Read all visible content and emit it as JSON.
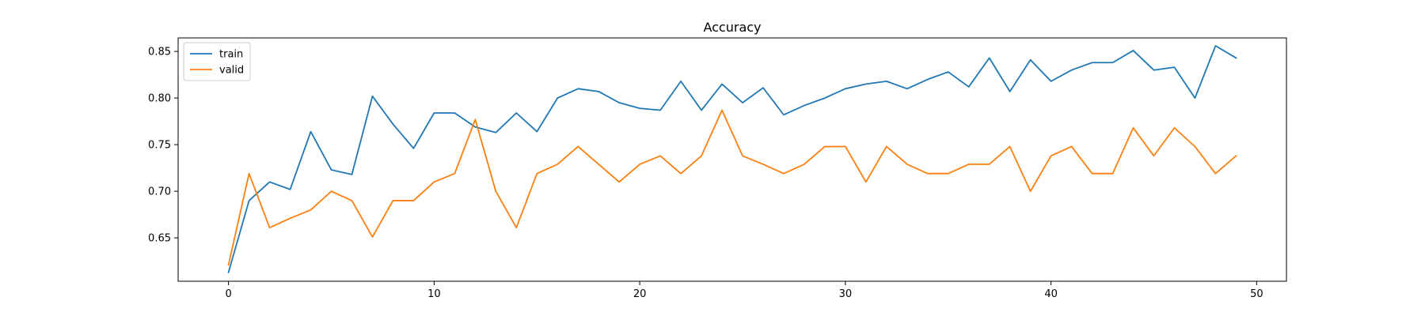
{
  "chart_data": {
    "type": "line",
    "title": "Accuracy",
    "xlabel": "",
    "ylabel": "",
    "xlim": [
      -2.45,
      51.45
    ],
    "ylim": [
      0.6035,
      0.8645
    ],
    "x_ticks": [
      0,
      10,
      20,
      30,
      40,
      50
    ],
    "y_ticks": [
      0.65,
      0.7,
      0.75,
      0.8,
      0.85
    ],
    "x_tick_labels": [
      "0",
      "10",
      "20",
      "30",
      "40",
      "50"
    ],
    "y_tick_labels": [
      "0.65",
      "0.70",
      "0.75",
      "0.80",
      "0.85"
    ],
    "grid": false,
    "legend": "upper-left",
    "x": [
      0,
      1,
      2,
      3,
      4,
      5,
      6,
      7,
      8,
      9,
      10,
      11,
      12,
      13,
      14,
      15,
      16,
      17,
      18,
      19,
      20,
      21,
      22,
      23,
      24,
      25,
      26,
      27,
      28,
      29,
      30,
      31,
      32,
      33,
      34,
      35,
      36,
      37,
      38,
      39,
      40,
      41,
      42,
      43,
      44,
      45,
      46,
      47,
      48,
      49
    ],
    "series": [
      {
        "name": "train",
        "color": "#1f77b4",
        "values": [
          0.613,
          0.69,
          0.71,
          0.702,
          0.764,
          0.723,
          0.718,
          0.802,
          0.772,
          0.746,
          0.784,
          0.784,
          0.769,
          0.763,
          0.784,
          0.764,
          0.8,
          0.81,
          0.807,
          0.795,
          0.789,
          0.787,
          0.818,
          0.787,
          0.815,
          0.795,
          0.811,
          0.782,
          0.792,
          0.8,
          0.81,
          0.815,
          0.818,
          0.81,
          0.82,
          0.828,
          0.812,
          0.843,
          0.807,
          0.841,
          0.818,
          0.83,
          0.838,
          0.838,
          0.851,
          0.83,
          0.833,
          0.8,
          0.856,
          0.843
        ]
      },
      {
        "name": "valid",
        "color": "#ff7f0e",
        "values": [
          0.621,
          0.719,
          0.661,
          0.671,
          0.68,
          0.7,
          0.69,
          0.651,
          0.69,
          0.69,
          0.71,
          0.719,
          0.777,
          0.7,
          0.661,
          0.719,
          0.729,
          0.748,
          0.729,
          0.71,
          0.729,
          0.738,
          0.719,
          0.738,
          0.787,
          0.738,
          0.729,
          0.719,
          0.729,
          0.748,
          0.748,
          0.71,
          0.748,
          0.729,
          0.719,
          0.719,
          0.729,
          0.729,
          0.748,
          0.7,
          0.738,
          0.748,
          0.719,
          0.719,
          0.768,
          0.738,
          0.768,
          0.748,
          0.719,
          0.738
        ]
      }
    ]
  }
}
